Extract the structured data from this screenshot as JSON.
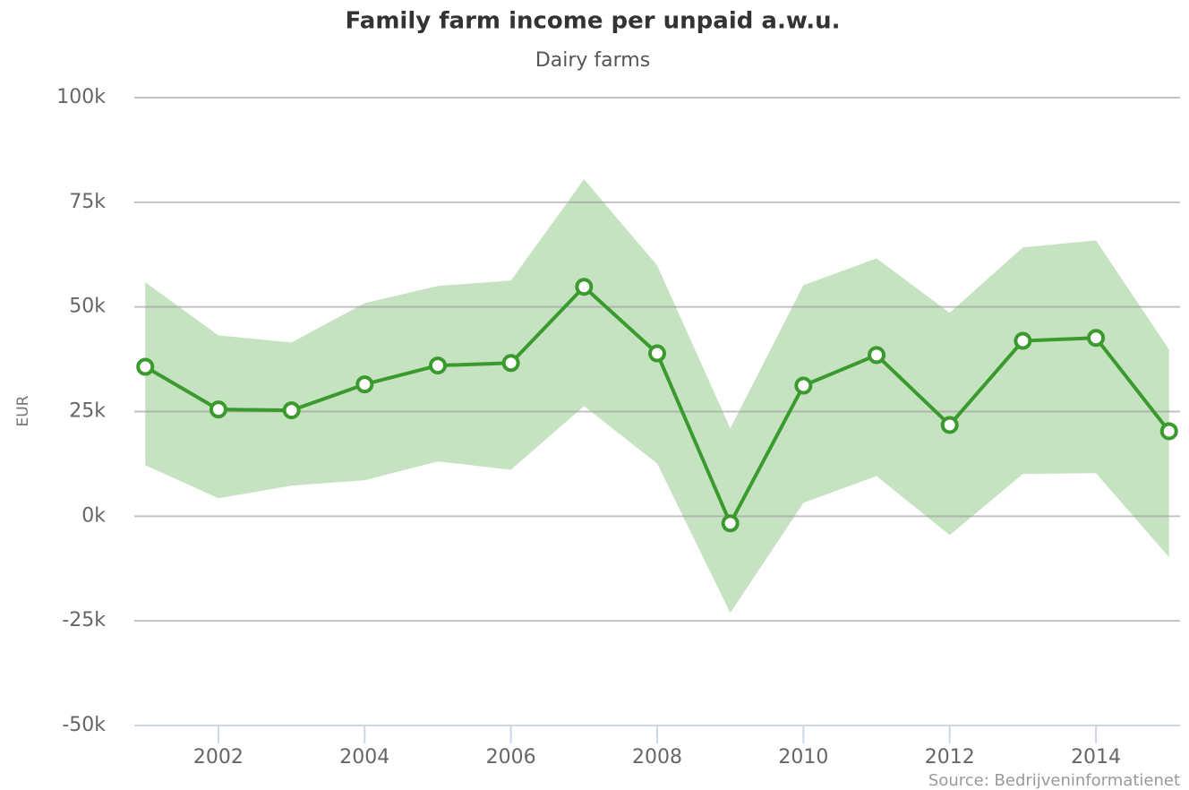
{
  "chart_data": {
    "type": "line",
    "title": "Family farm income per unpaid a.w.u.",
    "subtitle": "Dairy farms",
    "y_label": "EUR",
    "source": "Source: Bedrijveninformatienet",
    "x": [
      2001,
      2002,
      2003,
      2004,
      2005,
      2006,
      2007,
      2008,
      2009,
      2010,
      2011,
      2012,
      2013,
      2014,
      2015
    ],
    "values": [
      35700,
      25500,
      25300,
      31500,
      36000,
      36600,
      54800,
      38900,
      -1700,
      31200,
      38500,
      21800,
      41900,
      42600,
      20300
    ],
    "range_high": [
      55900,
      43200,
      41500,
      50900,
      55000,
      56300,
      80500,
      59900,
      21000,
      55200,
      61600,
      48600,
      64200,
      65900,
      39800
    ],
    "range_low": [
      12200,
      4300,
      7300,
      8600,
      13100,
      11100,
      26300,
      12600,
      -23100,
      3200,
      9600,
      -4500,
      10100,
      10300,
      -9800
    ],
    "color": "#3a9a2e",
    "band_color": "#c5e3c0",
    "xlim": [
      2000.85,
      2015.15
    ],
    "xticks": [
      2002,
      2004,
      2006,
      2008,
      2010,
      2012,
      2014
    ],
    "ylim": [
      -50000,
      100000
    ],
    "yticks": [
      {
        "value": -50000,
        "label": "-50k"
      },
      {
        "value": -25000,
        "label": "-25k"
      },
      {
        "value": 0,
        "label": "0k"
      },
      {
        "value": 25000,
        "label": "25k"
      },
      {
        "value": 50000,
        "label": "50k"
      },
      {
        "value": 75000,
        "label": "75k"
      },
      {
        "value": 100000,
        "label": "100k"
      }
    ],
    "grid": true
  }
}
